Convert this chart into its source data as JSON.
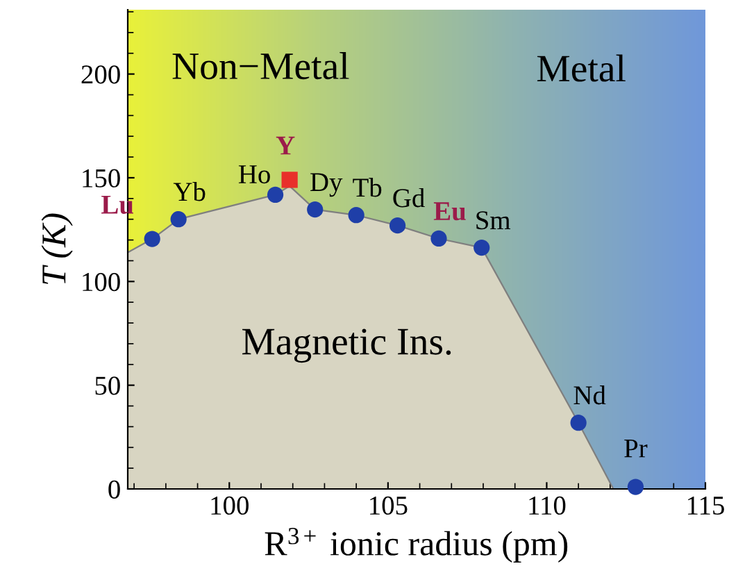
{
  "chart_data": {
    "type": "scatter",
    "xlabel": "R$^{3+}$ ionic radius (pm)",
    "ylabel": "T (K)",
    "xlim": [
      96.8,
      115
    ],
    "ylim": [
      0,
      231
    ],
    "xticks": [
      100,
      105,
      110,
      115
    ],
    "yticks": [
      0,
      50,
      100,
      150,
      200
    ],
    "grid": false,
    "legend": false,
    "series": [
      {
        "type": "area",
        "color": "#7f7f7f",
        "x": [
          96.8,
          97.57,
          98.4,
          101.45,
          101.9,
          102.7,
          104.0,
          105.3,
          106.6,
          107.95,
          111.0,
          112.1
        ],
        "values": [
          114,
          120.5,
          130,
          141.8,
          146,
          134.7,
          132,
          127,
          120.7,
          116.3,
          31.9,
          0
        ]
      },
      {
        "color": "#1f3fa8",
        "marker": "circle",
        "x": [
          98.4,
          101.45,
          102.7,
          104.0,
          105.3,
          107.95,
          111.0,
          112.8
        ],
        "values": [
          130,
          141.8,
          134.7,
          132,
          127,
          116.3,
          31.9,
          1
        ],
        "value_labels": [
          "Yb",
          "Ho",
          "Dy",
          "Tb",
          "Gd",
          "Sm",
          "Nd",
          "Pr"
        ]
      },
      {
        "color": "#1f3fa8",
        "marker": "circle",
        "x": [
          97.57,
          106.6
        ],
        "values": [
          120.5,
          120.7
        ],
        "value_labels": [
          "Lu",
          "Eu"
        ]
      },
      {
        "color": "#e8302a",
        "marker": "square",
        "x": [
          101.9
        ],
        "values": [
          149
        ],
        "value_labels": [
          "Y"
        ]
      }
    ],
    "annotations": [
      "Non−Metal",
      "Metal",
      "Magnetic Ins."
    ]
  }
}
